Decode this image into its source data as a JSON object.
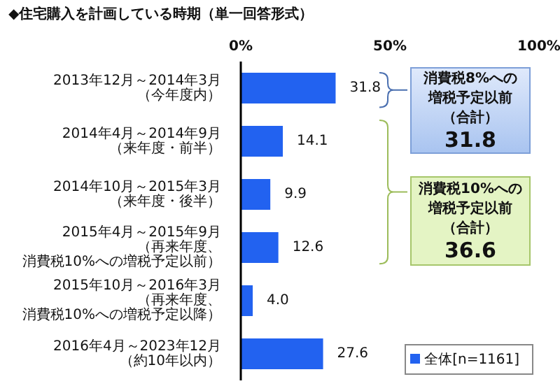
{
  "chart_data": {
    "type": "bar",
    "orientation": "horizontal",
    "title": "◆住宅購入を計画している時期（単一回答形式）",
    "categories": [
      "2013年12月～2014年3月（今年度内）",
      "2014年4月～2014年9月（来年度・前半）",
      "2014年10月～2015年3月（来年度・後半）",
      "2015年4月～2015年9月（再来年度、消費税10%への増税予定以前）",
      "2015年10月～2016年3月（再来年度、消費税10%への増税予定以降）",
      "2016年4月～2023年12月（約10年以内）"
    ],
    "series": [
      {
        "name": "全体[n=1161]",
        "color": "#2262f0",
        "values": [
          31.8,
          14.1,
          9.9,
          12.6,
          4.0,
          27.6
        ],
        "value_labels": [
          "31.8",
          "14.1",
          "9.9",
          "12.6",
          "4.0",
          "27.6"
        ]
      }
    ],
    "xlim": [
      0,
      100
    ],
    "xticks": [
      {
        "value": 0,
        "label": "0%"
      },
      {
        "value": 50,
        "label": "50%"
      },
      {
        "value": 100,
        "label": "100%"
      }
    ],
    "legend": "bottom right",
    "annotations": [
      "消費税8%への増税予定以前（合計）",
      "31.8",
      "消費税10%への増税予定以前（合計）",
      "36.6"
    ]
  }
}
